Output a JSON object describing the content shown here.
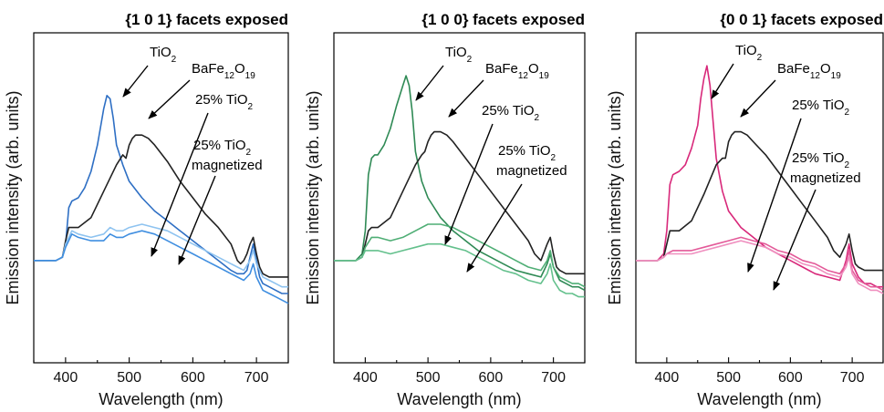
{
  "chart_data": [
    {
      "type": "line",
      "title": "{1 0 1} facets exposed",
      "xlabel": "Wavelength (nm)",
      "ylabel": "Emission intensity (arb. units)",
      "xlim": [
        350,
        750
      ],
      "xticks": [
        400,
        500,
        600,
        700
      ],
      "ylim": [
        0,
        1
      ],
      "y_ticks_shown": false,
      "annotations": [
        {
          "text": [
            "TiO",
            "2",
            ""
          ],
          "points_to": "TiO2"
        },
        {
          "text": [
            "BaFe",
            "12",
            "O",
            "19"
          ],
          "points_to": "BaFe12O19"
        },
        {
          "text": [
            "25% TiO",
            "2",
            ""
          ],
          "points_to": "25% TiO2"
        },
        {
          "text": [
            "25% TiO",
            "2",
            ""
          ],
          "text2": "magnetized",
          "points_to": "25% TiO2 magnetized"
        }
      ],
      "series": [
        {
          "key": "TiO2",
          "color": "#2e6fc4",
          "x": [
            350,
            385,
            395,
            400,
            405,
            410,
            420,
            430,
            440,
            450,
            460,
            465,
            470,
            475,
            480,
            490,
            500,
            520,
            540,
            560,
            580,
            600,
            620,
            640,
            660,
            670,
            680,
            685,
            690,
            695,
            700,
            705,
            710,
            720,
            730,
            740,
            750
          ],
          "y": [
            0.31,
            0.31,
            0.32,
            0.36,
            0.47,
            0.49,
            0.5,
            0.53,
            0.58,
            0.66,
            0.77,
            0.81,
            0.8,
            0.74,
            0.66,
            0.6,
            0.55,
            0.5,
            0.46,
            0.43,
            0.4,
            0.37,
            0.34,
            0.31,
            0.28,
            0.27,
            0.27,
            0.28,
            0.32,
            0.36,
            0.31,
            0.26,
            0.24,
            0.23,
            0.22,
            0.21,
            0.21
          ]
        },
        {
          "key": "BaFe12O19",
          "color": "#222222",
          "x": [
            350,
            385,
            395,
            400,
            405,
            410,
            420,
            440,
            460,
            480,
            490,
            495,
            500,
            505,
            510,
            520,
            530,
            540,
            560,
            580,
            600,
            620,
            640,
            660,
            670,
            675,
            680,
            685,
            690,
            695,
            700,
            705,
            710,
            720,
            730,
            740,
            750
          ],
          "y": [
            0.31,
            0.31,
            0.32,
            0.37,
            0.41,
            0.41,
            0.41,
            0.44,
            0.52,
            0.6,
            0.63,
            0.62,
            0.66,
            0.68,
            0.69,
            0.69,
            0.68,
            0.66,
            0.61,
            0.55,
            0.5,
            0.45,
            0.41,
            0.36,
            0.31,
            0.3,
            0.31,
            0.33,
            0.36,
            0.38,
            0.33,
            0.29,
            0.27,
            0.26,
            0.26,
            0.26,
            0.26
          ]
        },
        {
          "key": "25% TiO2",
          "color": "#8ec3f0",
          "x": [
            350,
            385,
            395,
            400,
            410,
            420,
            440,
            460,
            470,
            480,
            490,
            500,
            520,
            540,
            560,
            580,
            600,
            620,
            640,
            660,
            680,
            690,
            695,
            700,
            710,
            720,
            730,
            740,
            750
          ],
          "y": [
            0.31,
            0.31,
            0.32,
            0.36,
            0.4,
            0.39,
            0.38,
            0.39,
            0.41,
            0.4,
            0.4,
            0.41,
            0.42,
            0.41,
            0.4,
            0.38,
            0.36,
            0.34,
            0.32,
            0.3,
            0.28,
            0.31,
            0.34,
            0.3,
            0.26,
            0.25,
            0.24,
            0.23,
            0.23
          ]
        },
        {
          "key": "25% TiO2 magnetized",
          "color": "#3f8ee0",
          "x": [
            350,
            385,
            395,
            400,
            410,
            420,
            440,
            460,
            470,
            480,
            490,
            500,
            520,
            540,
            560,
            580,
            600,
            620,
            640,
            660,
            680,
            690,
            695,
            700,
            710,
            720,
            730,
            740,
            750
          ],
          "y": [
            0.31,
            0.31,
            0.32,
            0.35,
            0.39,
            0.38,
            0.37,
            0.37,
            0.39,
            0.38,
            0.38,
            0.39,
            0.4,
            0.39,
            0.37,
            0.35,
            0.33,
            0.31,
            0.29,
            0.27,
            0.25,
            0.27,
            0.3,
            0.26,
            0.22,
            0.21,
            0.2,
            0.19,
            0.18
          ]
        }
      ]
    },
    {
      "type": "line",
      "title": "{1 0 0} facets exposed",
      "xlabel": "Wavelength (nm)",
      "ylabel": "Emission intensity (arb. units)",
      "xlim": [
        350,
        750
      ],
      "xticks": [
        400,
        500,
        600,
        700
      ],
      "ylim": [
        0,
        1
      ],
      "y_ticks_shown": false,
      "annotations": [
        {
          "text": [
            "TiO",
            "2",
            ""
          ],
          "points_to": "TiO2"
        },
        {
          "text": [
            "BaFe",
            "12",
            "O",
            "19"
          ],
          "points_to": "BaFe12O19"
        },
        {
          "text": [
            "25% TiO",
            "2",
            ""
          ],
          "points_to": "25% TiO2"
        },
        {
          "text": [
            "25% TiO",
            "2",
            ""
          ],
          "text2": "magnetized",
          "points_to": "25% TiO2 magnetized"
        }
      ],
      "series": [
        {
          "key": "TiO2",
          "color": "#2f8a55",
          "x": [
            350,
            385,
            395,
            400,
            405,
            410,
            415,
            420,
            430,
            440,
            450,
            460,
            465,
            470,
            475,
            480,
            490,
            500,
            520,
            540,
            560,
            580,
            600,
            620,
            640,
            660,
            680,
            690,
            695,
            700,
            710,
            720,
            730,
            740,
            750
          ],
          "y": [
            0.31,
            0.31,
            0.33,
            0.4,
            0.57,
            0.62,
            0.63,
            0.63,
            0.66,
            0.71,
            0.78,
            0.84,
            0.87,
            0.84,
            0.76,
            0.64,
            0.55,
            0.5,
            0.44,
            0.4,
            0.37,
            0.34,
            0.32,
            0.3,
            0.28,
            0.27,
            0.26,
            0.3,
            0.33,
            0.29,
            0.25,
            0.24,
            0.23,
            0.23,
            0.22
          ]
        },
        {
          "key": "BaFe12O19",
          "color": "#222222",
          "x": [
            350,
            385,
            395,
            400,
            405,
            410,
            420,
            440,
            460,
            480,
            490,
            495,
            500,
            505,
            510,
            520,
            530,
            540,
            560,
            580,
            600,
            620,
            640,
            660,
            670,
            680,
            690,
            695,
            700,
            705,
            710,
            720,
            730,
            740,
            750
          ],
          "y": [
            0.31,
            0.31,
            0.32,
            0.36,
            0.4,
            0.41,
            0.41,
            0.44,
            0.52,
            0.6,
            0.63,
            0.64,
            0.67,
            0.69,
            0.7,
            0.7,
            0.69,
            0.67,
            0.62,
            0.57,
            0.52,
            0.47,
            0.42,
            0.37,
            0.33,
            0.31,
            0.36,
            0.38,
            0.33,
            0.29,
            0.28,
            0.27,
            0.27,
            0.27,
            0.27
          ]
        },
        {
          "key": "25% TiO2",
          "color": "#4fae75",
          "x": [
            350,
            385,
            395,
            400,
            410,
            420,
            440,
            460,
            480,
            500,
            520,
            540,
            560,
            580,
            600,
            620,
            640,
            660,
            680,
            690,
            695,
            700,
            710,
            720,
            730,
            740,
            750
          ],
          "y": [
            0.31,
            0.31,
            0.32,
            0.35,
            0.38,
            0.38,
            0.37,
            0.38,
            0.4,
            0.42,
            0.42,
            0.41,
            0.39,
            0.37,
            0.35,
            0.33,
            0.31,
            0.29,
            0.28,
            0.31,
            0.34,
            0.29,
            0.26,
            0.25,
            0.24,
            0.24,
            0.23
          ]
        },
        {
          "key": "25% TiO2 magnetized",
          "color": "#63c08c",
          "x": [
            350,
            385,
            395,
            400,
            410,
            420,
            440,
            460,
            480,
            500,
            520,
            540,
            560,
            580,
            600,
            620,
            640,
            660,
            680,
            690,
            695,
            700,
            710,
            720,
            730,
            740,
            750
          ],
          "y": [
            0.31,
            0.31,
            0.32,
            0.34,
            0.34,
            0.34,
            0.33,
            0.34,
            0.35,
            0.36,
            0.36,
            0.35,
            0.34,
            0.32,
            0.3,
            0.28,
            0.27,
            0.25,
            0.24,
            0.27,
            0.3,
            0.25,
            0.22,
            0.21,
            0.21,
            0.2,
            0.2
          ]
        }
      ]
    },
    {
      "type": "line",
      "title": "{0 0 1} facets exposed",
      "xlabel": "Wavelength (nm)",
      "ylabel": "Emission intensity (arb. units)",
      "xlim": [
        350,
        750
      ],
      "xticks": [
        400,
        500,
        600,
        700
      ],
      "ylim": [
        0,
        1
      ],
      "y_ticks_shown": false,
      "annotations": [
        {
          "text": [
            "TiO",
            "2",
            ""
          ],
          "points_to": "TiO2"
        },
        {
          "text": [
            "BaFe",
            "12",
            "O",
            "19"
          ],
          "points_to": "BaFe12O19"
        },
        {
          "text": [
            "25% TiO",
            "2",
            ""
          ],
          "points_to": "25% TiO2"
        },
        {
          "text": [
            "25% TiO",
            "2",
            ""
          ],
          "text2": "magnetized",
          "points_to": "25% TiO2 magnetized"
        }
      ],
      "series": [
        {
          "key": "TiO2",
          "color": "#d8287a",
          "x": [
            350,
            385,
            395,
            400,
            405,
            410,
            420,
            430,
            440,
            450,
            455,
            460,
            465,
            470,
            475,
            480,
            490,
            500,
            520,
            540,
            560,
            580,
            600,
            620,
            640,
            660,
            680,
            690,
            695,
            700,
            710,
            720,
            730,
            740,
            750
          ],
          "y": [
            0.31,
            0.31,
            0.33,
            0.4,
            0.54,
            0.57,
            0.58,
            0.6,
            0.65,
            0.72,
            0.8,
            0.86,
            0.9,
            0.84,
            0.73,
            0.62,
            0.52,
            0.46,
            0.41,
            0.38,
            0.35,
            0.33,
            0.31,
            0.29,
            0.27,
            0.26,
            0.25,
            0.31,
            0.36,
            0.3,
            0.26,
            0.24,
            0.24,
            0.23,
            0.23
          ]
        },
        {
          "key": "BaFe12O19",
          "color": "#222222",
          "x": [
            350,
            385,
            395,
            400,
            405,
            410,
            420,
            440,
            460,
            480,
            490,
            495,
            500,
            505,
            510,
            520,
            530,
            540,
            560,
            580,
            600,
            620,
            640,
            660,
            670,
            680,
            690,
            695,
            700,
            705,
            710,
            720,
            730,
            740,
            750
          ],
          "y": [
            0.31,
            0.31,
            0.32,
            0.36,
            0.4,
            0.4,
            0.4,
            0.43,
            0.51,
            0.6,
            0.62,
            0.62,
            0.67,
            0.69,
            0.7,
            0.7,
            0.69,
            0.67,
            0.63,
            0.58,
            0.53,
            0.48,
            0.43,
            0.38,
            0.34,
            0.32,
            0.36,
            0.39,
            0.34,
            0.3,
            0.29,
            0.28,
            0.28,
            0.28,
            0.28
          ]
        },
        {
          "key": "25% TiO2",
          "color": "#e35a99",
          "x": [
            350,
            385,
            395,
            400,
            410,
            420,
            440,
            460,
            480,
            500,
            520,
            540,
            560,
            580,
            600,
            620,
            640,
            660,
            680,
            690,
            695,
            700,
            710,
            720,
            730,
            740,
            750
          ],
          "y": [
            0.31,
            0.31,
            0.32,
            0.33,
            0.34,
            0.34,
            0.34,
            0.35,
            0.36,
            0.37,
            0.38,
            0.37,
            0.36,
            0.34,
            0.33,
            0.31,
            0.3,
            0.28,
            0.27,
            0.3,
            0.34,
            0.28,
            0.25,
            0.24,
            0.23,
            0.23,
            0.22
          ]
        },
        {
          "key": "25% TiO2 magnetized",
          "color": "#ef8fbf",
          "x": [
            350,
            385,
            395,
            400,
            410,
            420,
            440,
            460,
            480,
            500,
            520,
            540,
            560,
            580,
            600,
            620,
            640,
            660,
            680,
            690,
            695,
            700,
            710,
            720,
            730,
            740,
            750
          ],
          "y": [
            0.31,
            0.31,
            0.32,
            0.33,
            0.33,
            0.33,
            0.33,
            0.34,
            0.35,
            0.36,
            0.37,
            0.36,
            0.35,
            0.33,
            0.32,
            0.3,
            0.29,
            0.27,
            0.26,
            0.29,
            0.32,
            0.27,
            0.24,
            0.23,
            0.22,
            0.22,
            0.21
          ]
        }
      ]
    }
  ]
}
